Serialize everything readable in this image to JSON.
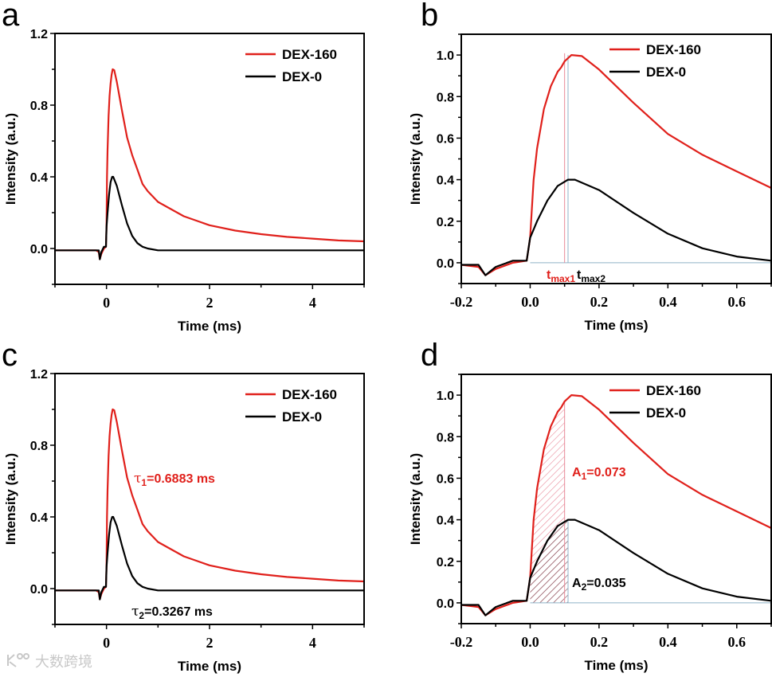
{
  "watermark": "大数跨境",
  "colors": {
    "dex160": "#e0201b",
    "dex0": "#000000",
    "tmax1_line": "#e88a9a",
    "tmax2_line": "#8fb3c8",
    "baseline": "#8fb3c8"
  },
  "chart_data": [
    {
      "panel_label": "a",
      "type": "line",
      "xlabel": "Time (ms)",
      "ylabel": "Intensity (a.u.)",
      "xlim": [
        -1,
        5
      ],
      "ylim": [
        -0.2,
        1.2
      ],
      "xticks": [
        0,
        2,
        4
      ],
      "xtick_labels": [
        "0",
        "2",
        "4"
      ],
      "yticks": [
        0.0,
        0.4,
        0.8,
        1.2
      ],
      "ytick_labels": [
        "0.0",
        "0.4",
        "0.8",
        "1.2"
      ],
      "legend": {
        "placement": "top-right",
        "entries": [
          "DEX-160",
          "DEX-0"
        ]
      },
      "series": [
        {
          "name": "DEX-160",
          "x": [
            -1,
            -0.2,
            -0.15,
            -0.13,
            -0.1,
            -0.05,
            -0.01,
            0,
            0.01,
            0.02,
            0.04,
            0.06,
            0.08,
            0.1,
            0.12,
            0.15,
            0.2,
            0.3,
            0.4,
            0.5,
            0.6,
            0.7,
            0.8,
            1.0,
            1.5,
            2,
            2.5,
            3,
            3.5,
            4,
            4.5,
            5
          ],
          "y": [
            -0.01,
            -0.01,
            -0.02,
            -0.06,
            -0.03,
            0.0,
            0.01,
            0.12,
            0.4,
            0.55,
            0.74,
            0.85,
            0.92,
            0.97,
            1.0,
            0.995,
            0.93,
            0.77,
            0.62,
            0.52,
            0.44,
            0.36,
            0.32,
            0.26,
            0.18,
            0.13,
            0.1,
            0.08,
            0.065,
            0.055,
            0.045,
            0.04
          ]
        },
        {
          "name": "DEX-0",
          "x": [
            -1,
            -0.15,
            -0.13,
            -0.1,
            -0.05,
            -0.01,
            0,
            0.02,
            0.05,
            0.08,
            0.11,
            0.13,
            0.2,
            0.3,
            0.4,
            0.5,
            0.6,
            0.7,
            0.8,
            1.0,
            5
          ],
          "y": [
            -0.01,
            -0.01,
            -0.06,
            -0.02,
            0.01,
            0.01,
            0.12,
            0.2,
            0.3,
            0.37,
            0.4,
            0.4,
            0.35,
            0.24,
            0.14,
            0.07,
            0.03,
            0.01,
            0.0,
            -0.01,
            -0.01
          ]
        }
      ],
      "annotations": []
    },
    {
      "panel_label": "b",
      "type": "line",
      "xlabel": "Time (ms)",
      "ylabel": "Intensity (a.u.)",
      "xlim": [
        -0.2,
        0.7
      ],
      "ylim": [
        -0.1,
        1.1
      ],
      "xticks": [
        -0.2,
        0.0,
        0.2,
        0.4,
        0.6
      ],
      "xtick_labels": [
        "-0.2",
        "0.0",
        "0.2",
        "0.4",
        "0.6"
      ],
      "yticks": [
        0.0,
        0.2,
        0.4,
        0.6,
        0.8,
        1.0
      ],
      "ytick_labels": [
        "0.0",
        "0.2",
        "0.4",
        "0.6",
        "0.8",
        "1.0"
      ],
      "legend": {
        "placement": "top-right",
        "entries": [
          "DEX-160",
          "DEX-0"
        ]
      },
      "series": [
        {
          "name": "DEX-160",
          "x": [
            -0.2,
            -0.15,
            -0.13,
            -0.1,
            -0.05,
            -0.01,
            0,
            0.01,
            0.02,
            0.04,
            0.06,
            0.08,
            0.09,
            0.1,
            0.12,
            0.15,
            0.2,
            0.3,
            0.4,
            0.5,
            0.6,
            0.7
          ],
          "y": [
            -0.01,
            -0.02,
            -0.06,
            -0.03,
            0.0,
            0.01,
            0.12,
            0.4,
            0.55,
            0.74,
            0.85,
            0.92,
            0.94,
            0.97,
            1.0,
            0.995,
            0.93,
            0.77,
            0.62,
            0.52,
            0.44,
            0.36
          ]
        },
        {
          "name": "DEX-0",
          "x": [
            -0.2,
            -0.15,
            -0.13,
            -0.1,
            -0.05,
            -0.01,
            0,
            0.02,
            0.05,
            0.08,
            0.11,
            0.13,
            0.2,
            0.3,
            0.4,
            0.5,
            0.6,
            0.7
          ],
          "y": [
            -0.01,
            -0.01,
            -0.06,
            -0.02,
            0.01,
            0.01,
            0.12,
            0.2,
            0.3,
            0.37,
            0.4,
            0.4,
            0.35,
            0.24,
            0.14,
            0.07,
            0.03,
            0.01
          ]
        }
      ],
      "markers": {
        "tmax1": 0.1,
        "tmax2": 0.11
      },
      "annotations": [
        {
          "main": "t",
          "sub": "max1",
          "rest": "",
          "color": "#e0201b"
        },
        {
          "main": "t",
          "sub": "max2",
          "rest": "",
          "color": "#000000"
        }
      ]
    },
    {
      "panel_label": "c",
      "type": "line",
      "xlabel": "Time (ms)",
      "ylabel": "Intensity (a.u.)",
      "xlim": [
        -1,
        5
      ],
      "ylim": [
        -0.2,
        1.2
      ],
      "xticks": [
        0,
        2,
        4
      ],
      "xtick_labels": [
        "0",
        "2",
        "4"
      ],
      "yticks": [
        0.0,
        0.4,
        0.8,
        1.2
      ],
      "ytick_labels": [
        "0.0",
        "0.4",
        "0.8",
        "1.2"
      ],
      "legend": {
        "placement": "top-right",
        "entries": [
          "DEX-160",
          "DEX-0"
        ]
      },
      "series": [
        {
          "name": "DEX-160",
          "x": [
            -1,
            -0.2,
            -0.15,
            -0.13,
            -0.1,
            -0.05,
            -0.01,
            0,
            0.01,
            0.02,
            0.04,
            0.06,
            0.08,
            0.1,
            0.12,
            0.15,
            0.2,
            0.3,
            0.4,
            0.5,
            0.6,
            0.7,
            0.8,
            1.0,
            1.5,
            2,
            2.5,
            3,
            3.5,
            4,
            4.5,
            5
          ],
          "y": [
            -0.01,
            -0.01,
            -0.02,
            -0.06,
            -0.03,
            0.0,
            0.01,
            0.12,
            0.4,
            0.55,
            0.74,
            0.85,
            0.92,
            0.97,
            1.0,
            0.995,
            0.93,
            0.77,
            0.62,
            0.52,
            0.44,
            0.36,
            0.32,
            0.26,
            0.18,
            0.13,
            0.1,
            0.08,
            0.065,
            0.055,
            0.045,
            0.04
          ]
        },
        {
          "name": "DEX-0",
          "x": [
            -1,
            -0.15,
            -0.13,
            -0.1,
            -0.05,
            -0.01,
            0,
            0.02,
            0.05,
            0.08,
            0.11,
            0.13,
            0.2,
            0.3,
            0.4,
            0.5,
            0.6,
            0.7,
            0.8,
            1.0,
            5
          ],
          "y": [
            -0.01,
            -0.01,
            -0.06,
            -0.02,
            0.01,
            0.01,
            0.12,
            0.2,
            0.3,
            0.37,
            0.4,
            0.4,
            0.35,
            0.24,
            0.14,
            0.07,
            0.03,
            0.01,
            0.0,
            -0.01,
            -0.01
          ]
        }
      ],
      "annotations": [
        {
          "main": "τ",
          "sub": "1",
          "rest": "=0.6883 ms",
          "color": "#e0201b"
        },
        {
          "main": "τ",
          "sub": "2",
          "rest": "=0.3267 ms",
          "color": "#000000"
        }
      ]
    },
    {
      "panel_label": "d",
      "type": "line",
      "xlabel": "Time (ms)",
      "ylabel": "Intensity (a.u.)",
      "xlim": [
        -0.2,
        0.7
      ],
      "ylim": [
        -0.1,
        1.1
      ],
      "xticks": [
        -0.2,
        0.0,
        0.2,
        0.4,
        0.6
      ],
      "xtick_labels": [
        "-0.2",
        "0.0",
        "0.2",
        "0.4",
        "0.6"
      ],
      "yticks": [
        0.0,
        0.2,
        0.4,
        0.6,
        0.8,
        1.0
      ],
      "ytick_labels": [
        "0.0",
        "0.2",
        "0.4",
        "0.6",
        "0.8",
        "1.0"
      ],
      "legend": {
        "placement": "top-right",
        "entries": [
          "DEX-160",
          "DEX-0"
        ]
      },
      "series": [
        {
          "name": "DEX-160",
          "x": [
            -0.2,
            -0.15,
            -0.13,
            -0.1,
            -0.05,
            -0.01,
            0,
            0.01,
            0.02,
            0.04,
            0.06,
            0.08,
            0.09,
            0.1,
            0.12,
            0.15,
            0.2,
            0.3,
            0.4,
            0.5,
            0.6,
            0.7
          ],
          "y": [
            -0.01,
            -0.02,
            -0.06,
            -0.03,
            0.0,
            0.01,
            0.12,
            0.4,
            0.55,
            0.74,
            0.85,
            0.92,
            0.94,
            0.97,
            1.0,
            0.995,
            0.93,
            0.77,
            0.62,
            0.52,
            0.44,
            0.36
          ]
        },
        {
          "name": "DEX-0",
          "x": [
            -0.2,
            -0.15,
            -0.13,
            -0.1,
            -0.05,
            -0.01,
            0,
            0.02,
            0.05,
            0.08,
            0.11,
            0.13,
            0.2,
            0.3,
            0.4,
            0.5,
            0.6,
            0.7
          ],
          "y": [
            -0.01,
            -0.01,
            -0.06,
            -0.02,
            0.01,
            0.01,
            0.12,
            0.2,
            0.3,
            0.37,
            0.4,
            0.4,
            0.35,
            0.24,
            0.14,
            0.07,
            0.03,
            0.01
          ]
        }
      ],
      "shaded_areas": [
        {
          "series": "DEX-160",
          "from": 0,
          "to": 0.1,
          "value": 0.073
        },
        {
          "series": "DEX-0",
          "from": 0,
          "to": 0.11,
          "value": 0.035
        }
      ],
      "annotations": [
        {
          "main": "A",
          "sub": "1",
          "rest": "=0.073",
          "color": "#e0201b"
        },
        {
          "main": "A",
          "sub": "2",
          "rest": "=0.035",
          "color": "#000000"
        }
      ]
    }
  ]
}
